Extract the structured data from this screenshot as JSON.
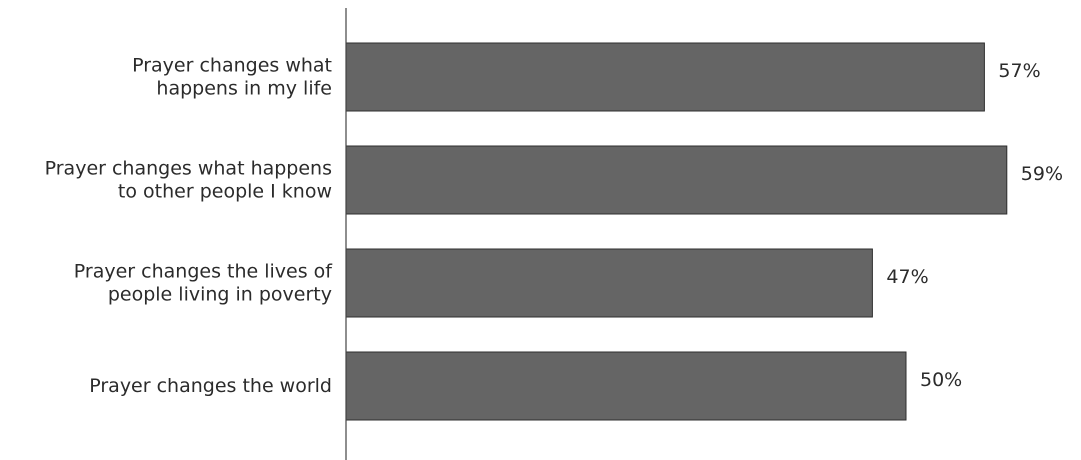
{
  "chart_data": {
    "type": "bar",
    "orientation": "horizontal",
    "categories": [
      [
        "Prayer changes what",
        "happens in my life"
      ],
      [
        "Prayer changes what happens",
        "to other people I know"
      ],
      [
        "Prayer changes the lives of",
        "people living in poverty"
      ],
      [
        "Prayer changes the world"
      ]
    ],
    "values": [
      57,
      59,
      47,
      50
    ],
    "value_labels": [
      "57%",
      "59%",
      "47%",
      "50%"
    ],
    "unit": "%",
    "title": "",
    "xlabel": "",
    "ylabel": "",
    "bar_color": "#656565",
    "grid": false,
    "legend": "none"
  }
}
